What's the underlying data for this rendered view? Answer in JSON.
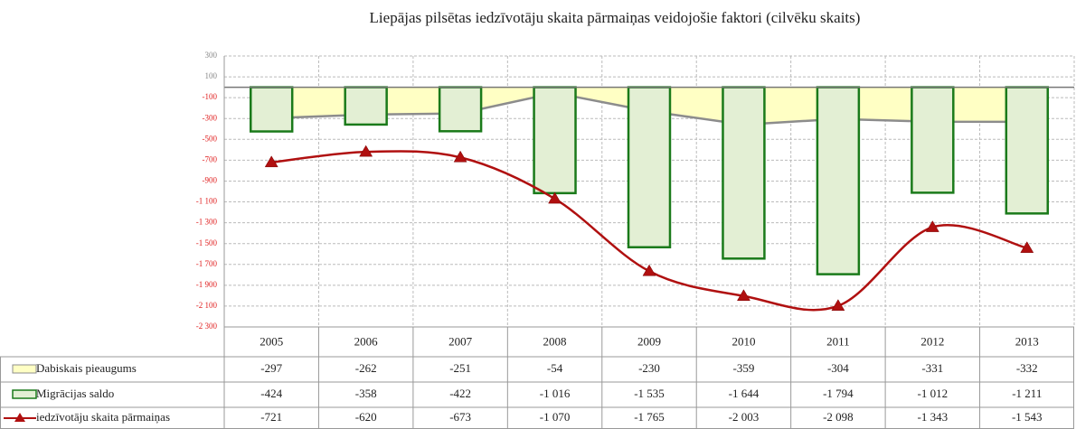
{
  "chart_data": {
    "type": "combo",
    "title": "Liepājas pilsētas iedzīvotāju skaita pārmaiņas veidojošie faktori (cilvēku skaits)",
    "categories": [
      "2005",
      "2006",
      "2007",
      "2008",
      "2009",
      "2010",
      "2011",
      "2012",
      "2013"
    ],
    "series": [
      {
        "name": "Dabiskais pieaugums",
        "type": "area",
        "color": "#ffffc4",
        "line_color": "#8c8c8c",
        "values": [
          -297,
          -262,
          -251,
          -54,
          -230,
          -359,
          -304,
          -331,
          -332
        ],
        "value_labels": [
          "-297",
          "-262",
          "-251",
          "-54",
          "-230",
          "-359",
          "-304",
          "-331",
          "-332"
        ]
      },
      {
        "name": "Migrācijas saldo",
        "type": "bar",
        "color": "#e3efd4",
        "line_color": "#1a7a1a",
        "values": [
          -424,
          -358,
          -422,
          -1016,
          -1535,
          -1644,
          -1794,
          -1012,
          -1211
        ],
        "value_labels": [
          "-424",
          "-358",
          "-422",
          "-1 016",
          "-1 535",
          "-1 644",
          "-1 794",
          "-1 012",
          "-1 211"
        ]
      },
      {
        "name": "iedzīvotāju skaita pārmaiņas",
        "type": "line",
        "color": "#b01010",
        "smooth": true,
        "values": [
          -721,
          -620,
          -673,
          -1070,
          -1765,
          -2003,
          -2098,
          -1343,
          -1543
        ],
        "value_labels": [
          "-721",
          "-620",
          "-673",
          "-1 070",
          "-1 765",
          "-2 003",
          "-2 098",
          "-1 343",
          "-1 543"
        ]
      }
    ],
    "ylim": [
      -2300,
      300
    ],
    "yticks": [
      300,
      100,
      -100,
      -300,
      -500,
      -700,
      -900,
      {
        "value": -1100,
        "label": "-1 100"
      },
      {
        "value": -1300,
        "label": "-1 300"
      },
      {
        "value": -1500,
        "label": "-1 500"
      },
      {
        "value": -1700,
        "label": "-1 700"
      },
      {
        "value": -1900,
        "label": "-1 900"
      },
      {
        "value": -2100,
        "label": "-2 100"
      },
      {
        "value": -2300,
        "label": "-2 300"
      }
    ],
    "grid": true,
    "data_table": true
  }
}
